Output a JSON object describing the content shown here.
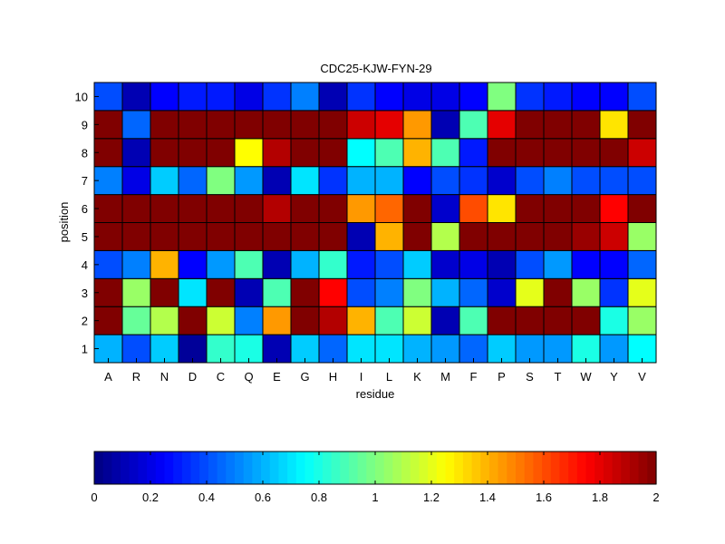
{
  "chart_data": [
    {
      "type": "heatmap",
      "title": "CDC25-KJW-FYN-29",
      "xlabel": "residue",
      "ylabel": "position",
      "x_categories": [
        "A",
        "R",
        "N",
        "D",
        "C",
        "Q",
        "E",
        "G",
        "H",
        "I",
        "L",
        "K",
        "M",
        "F",
        "P",
        "S",
        "T",
        "W",
        "Y",
        "V"
      ],
      "y_categories": [
        "1",
        "2",
        "3",
        "4",
        "5",
        "6",
        "7",
        "8",
        "9",
        "10"
      ],
      "colormap": "jet",
      "clim": [
        0,
        2
      ],
      "grid": true,
      "values": [
        [
          0.6,
          0.4,
          0.65,
          0.05,
          0.85,
          0.8,
          0.1,
          0.65,
          0.45,
          0.7,
          0.7,
          0.6,
          0.55,
          0.45,
          0.65,
          0.55,
          0.55,
          0.8,
          0.55,
          0.75
        ],
        [
          2.0,
          0.95,
          1.1,
          2.0,
          1.15,
          0.5,
          1.45,
          2.0,
          1.9,
          1.4,
          0.9,
          1.15,
          0.1,
          0.9,
          2.0,
          2.0,
          2.0,
          2.0,
          0.8,
          1.05
        ],
        [
          2.0,
          1.05,
          2.0,
          0.7,
          2.0,
          0.1,
          0.9,
          2.0,
          1.75,
          0.4,
          0.5,
          1.0,
          0.6,
          0.45,
          0.15,
          1.2,
          2.0,
          1.05,
          0.35,
          1.2
        ],
        [
          0.4,
          0.5,
          1.4,
          0.25,
          0.55,
          0.9,
          0.1,
          0.6,
          0.85,
          0.3,
          0.4,
          0.65,
          0.15,
          0.2,
          0.1,
          0.4,
          0.55,
          0.25,
          0.25,
          0.45
        ],
        [
          2.0,
          2.0,
          2.0,
          2.0,
          2.0,
          2.0,
          2.0,
          2.0,
          2.0,
          0.1,
          1.4,
          2.0,
          1.1,
          2.0,
          2.0,
          2.0,
          2.0,
          1.95,
          1.85,
          1.05
        ],
        [
          2.0,
          2.0,
          2.0,
          2.0,
          2.0,
          2.0,
          1.9,
          2.0,
          2.0,
          1.45,
          1.55,
          2.0,
          0.15,
          1.6,
          1.3,
          2.0,
          2.0,
          2.0,
          1.75,
          2.0
        ],
        [
          0.5,
          0.2,
          0.65,
          0.45,
          1.0,
          0.55,
          0.1,
          0.7,
          0.35,
          0.6,
          0.6,
          0.25,
          0.4,
          0.35,
          0.15,
          0.4,
          0.5,
          0.4,
          0.4,
          0.4
        ],
        [
          2.0,
          0.1,
          2.0,
          2.0,
          2.0,
          1.25,
          1.9,
          2.0,
          2.0,
          0.75,
          0.9,
          1.4,
          0.9,
          0.3,
          2.0,
          2.0,
          2.0,
          2.0,
          2.0,
          1.85
        ],
        [
          2.0,
          0.45,
          2.0,
          2.0,
          2.0,
          2.0,
          2.0,
          2.0,
          2.0,
          1.85,
          1.8,
          1.45,
          0.1,
          0.9,
          1.8,
          2.0,
          2.0,
          2.0,
          1.3,
          2.0
        ],
        [
          0.4,
          0.1,
          0.25,
          0.3,
          0.3,
          0.2,
          0.35,
          0.5,
          0.1,
          0.35,
          0.25,
          0.2,
          0.2,
          0.25,
          1.0,
          0.35,
          0.3,
          0.25,
          0.25,
          0.4
        ]
      ]
    },
    {
      "type": "colorbar",
      "ticks": [
        0,
        0.2,
        0.4,
        0.6,
        0.8,
        1,
        1.2,
        1.4,
        1.6,
        1.8,
        2
      ],
      "tick_labels": [
        "0",
        "0.2",
        "0.4",
        "0.6",
        "0.8",
        "1",
        "1.2",
        "1.4",
        "1.6",
        "1.8",
        "2"
      ],
      "range": [
        0,
        2
      ]
    }
  ]
}
